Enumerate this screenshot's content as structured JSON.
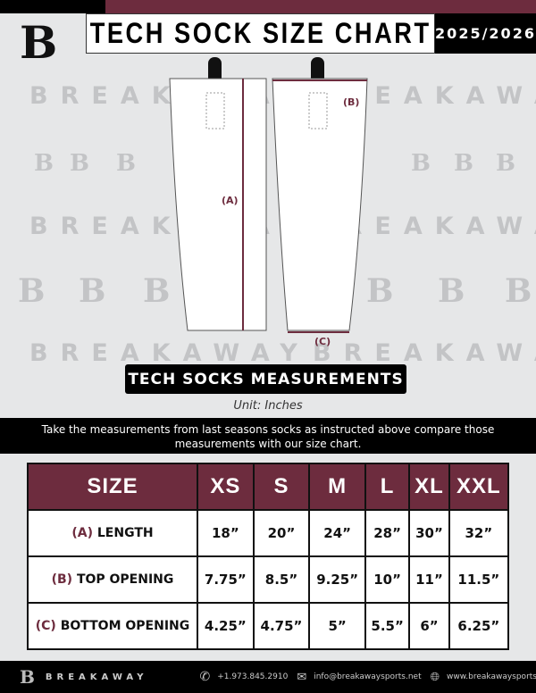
{
  "header": {
    "title": "TECH SOCK SIZE CHART",
    "season": "2025/2026",
    "logo": "B"
  },
  "watermark": {
    "text": "BREAKAWAY",
    "logo": "B"
  },
  "diagram": {
    "label_a": "(A)",
    "label_b": "(B)",
    "label_c": "(C)"
  },
  "section": {
    "title": "TECH SOCKS MEASUREMENTS",
    "unit": "Unit: Inches",
    "instructions": "Take the measurements from last seasons socks as instructed above compare those measurements  with our size chart."
  },
  "table": {
    "headers": [
      "SIZE",
      "XS",
      "S",
      "M",
      "L",
      "XL",
      "XXL"
    ],
    "rows": [
      {
        "key": "(A)",
        "label": "LENGTH",
        "values": [
          "18”",
          "20”",
          "24”",
          "28”",
          "30”",
          "32”"
        ]
      },
      {
        "key": "(B)",
        "label": "TOP OPENING",
        "values": [
          "7.75”",
          "8.5”",
          "9.25”",
          "10”",
          "11”",
          "11.5”"
        ]
      },
      {
        "key": "(C)",
        "label": "BOTTOM OPENING",
        "values": [
          "4.25”",
          "4.75”",
          "5”",
          "5.5”",
          "6”",
          "6.25”"
        ]
      }
    ]
  },
  "footer": {
    "brand": "BREAKAWAY",
    "phone": "+1.973.845.2910",
    "email": "info@breakawaysports.net",
    "website": "www.breakawaysports.net"
  },
  "colors": {
    "maroon": "#6d2c3e",
    "black": "#000000",
    "background": "#e6e7e8"
  }
}
